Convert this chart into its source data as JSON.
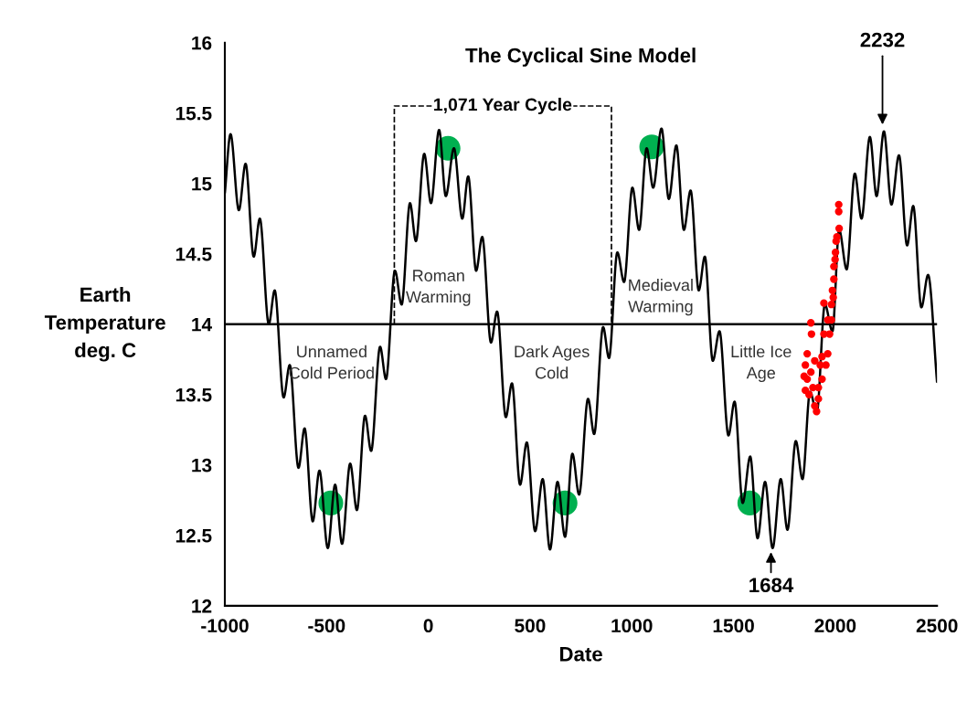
{
  "chart_data": {
    "type": "line",
    "title": "The Cyclical Sine Model",
    "xlabel": "Date",
    "ylabel": "Earth\nTemperature\ndeg. C",
    "xlim": [
      -1000,
      2500
    ],
    "xticks": [
      -1000,
      -500,
      0,
      500,
      1000,
      1500,
      2000,
      2500
    ],
    "ylim": [
      12,
      16
    ],
    "yticks": [
      12,
      12.5,
      13,
      13.5,
      14,
      14.5,
      15,
      15.5,
      16
    ],
    "grid": false,
    "annotations": [
      "Unnamed\nCold Period",
      "Roman\nWarming",
      "Dark Ages\nCold",
      "Medieval\nWarming",
      "Little Ice\nAge",
      "1,071 Year Cycle",
      {
        "text": "2232",
        "x": 2232,
        "y": 15.4
      },
      {
        "text": "1684",
        "x": 1684,
        "y": 12.4
      }
    ],
    "ref_lines": [
      {
        "axis": "y",
        "value": 14,
        "color": "#000000"
      }
    ],
    "series": [
      {
        "color": "#000000",
        "marker": "none",
        "line_style": "solid",
        "x": [
          -1000,
          -972,
          -931,
          -898,
          -858,
          -828,
          -784,
          -755,
          -711,
          -681,
          -638,
          -608,
          -568,
          -535,
          -494,
          -458,
          -424,
          -384,
          -351,
          -311,
          -281,
          -237,
          -208,
          -164,
          -131,
          -90,
          -61,
          -20,
          13,
          53,
          86,
          126,
          167,
          196,
          235,
          265,
          308,
          338,
          381,
          411,
          451,
          484,
          525,
          562,
          598,
          635,
          672,
          708,
          741,
          785,
          815,
          859,
          888,
          929,
          962,
          1003,
          1036,
          1073,
          1105,
          1146,
          1182,
          1219,
          1256,
          1289,
          1329,
          1359,
          1398,
          1431,
          1475,
          1505,
          1545,
          1582,
          1618,
          1655,
          1692,
          1732,
          1765,
          1806,
          1839,
          1876,
          1909,
          1949,
          1986,
          2019,
          2056,
          2096,
          2129,
          2170,
          2203,
          2239,
          2276,
          2313,
          2353,
          2383,
          2423,
          2456,
          2500
        ],
        "values": [
          14.93,
          15.35,
          14.81,
          15.14,
          14.48,
          14.75,
          14.0,
          14.24,
          13.48,
          13.71,
          12.98,
          13.26,
          12.6,
          12.96,
          12.41,
          12.86,
          12.44,
          13.01,
          12.68,
          13.35,
          13.1,
          13.84,
          13.61,
          14.38,
          14.14,
          14.86,
          14.59,
          15.21,
          14.86,
          15.38,
          14.91,
          15.25,
          14.75,
          15.05,
          14.38,
          14.62,
          13.87,
          14.09,
          13.34,
          13.58,
          12.86,
          13.16,
          12.53,
          12.9,
          12.4,
          12.88,
          12.49,
          13.08,
          12.79,
          13.47,
          13.22,
          13.98,
          13.76,
          14.51,
          14.3,
          14.97,
          14.67,
          15.25,
          14.97,
          15.39,
          14.89,
          15.27,
          14.67,
          14.95,
          14.24,
          14.48,
          13.74,
          13.95,
          13.21,
          13.45,
          12.73,
          13.06,
          12.48,
          12.88,
          12.41,
          12.9,
          12.54,
          13.17,
          12.9,
          13.52,
          13.37,
          14.14,
          13.95,
          14.67,
          14.39,
          15.07,
          14.75,
          15.33,
          14.91,
          15.37,
          14.85,
          15.2,
          14.56,
          14.84,
          14.12,
          14.35,
          13.59
        ]
      },
      {
        "type": "scatter",
        "color": "#ff0000",
        "marker": "circle",
        "x": [
          2017,
          2017,
          2019,
          2004,
          1999,
          1993,
          1990,
          1944,
          1880,
          1883,
          1981,
          1972,
          1963,
          1954,
          1862,
          1853,
          1847,
          1853,
          1871,
          1899,
          1908,
          1917,
          1935,
          1926,
          1899,
          1880,
          1944,
          1963,
          1981,
          1986,
          1993,
          2001,
          2008,
          1862,
          1890,
          1917,
          1935
        ],
        "values": [
          14.85,
          14.8,
          14.68,
          14.59,
          14.46,
          14.32,
          14.19,
          14.15,
          14.01,
          13.93,
          14.03,
          13.93,
          13.79,
          13.71,
          13.79,
          13.71,
          13.63,
          13.53,
          13.5,
          13.42,
          13.38,
          13.47,
          13.61,
          13.71,
          13.74,
          13.66,
          13.93,
          14.03,
          14.14,
          14.24,
          14.41,
          14.51,
          14.62,
          13.61,
          13.55,
          13.55,
          13.77
        ]
      },
      {
        "type": "line",
        "color": "#000000",
        "marker": "none",
        "line_style": "dashed",
        "x": [
          -167,
          -167,
          900,
          900
        ],
        "values": [
          14,
          15.55,
          15.55,
          14
        ]
      },
      {
        "type": "scatter",
        "color": "#00b050",
        "marker": "circle",
        "x": [
          -479,
          97,
          672,
          1098,
          1580
        ],
        "values": [
          12.73,
          15.25,
          12.73,
          15.26,
          12.73
        ]
      }
    ]
  }
}
